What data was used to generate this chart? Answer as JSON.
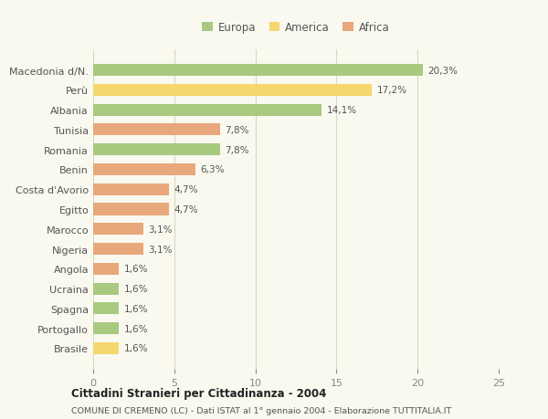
{
  "categories": [
    "Macedonia d/N.",
    "Perù",
    "Albania",
    "Tunisia",
    "Romania",
    "Benin",
    "Costa d'Avorio",
    "Egitto",
    "Marocco",
    "Nigeria",
    "Angola",
    "Ucraina",
    "Spagna",
    "Portogallo",
    "Brasile"
  ],
  "values": [
    20.3,
    17.2,
    14.1,
    7.8,
    7.8,
    6.3,
    4.7,
    4.7,
    3.1,
    3.1,
    1.6,
    1.6,
    1.6,
    1.6,
    1.6
  ],
  "labels": [
    "20,3%",
    "17,2%",
    "14,1%",
    "7,8%",
    "7,8%",
    "6,3%",
    "4,7%",
    "4,7%",
    "3,1%",
    "3,1%",
    "1,6%",
    "1,6%",
    "1,6%",
    "1,6%",
    "1,6%"
  ],
  "colors": [
    "#a8c97f",
    "#f5d76e",
    "#a8c97f",
    "#e8a87c",
    "#a8c97f",
    "#e8a87c",
    "#e8a87c",
    "#e8a87c",
    "#e8a87c",
    "#e8a87c",
    "#e8a87c",
    "#a8c97f",
    "#a8c97f",
    "#a8c97f",
    "#f5d76e"
  ],
  "legend": [
    {
      "label": "Europa",
      "color": "#a8c97f"
    },
    {
      "label": "America",
      "color": "#f5d76e"
    },
    {
      "label": "Africa",
      "color": "#e8a87c"
    }
  ],
  "xlim": [
    0,
    25
  ],
  "xticks": [
    0,
    5,
    10,
    15,
    20,
    25
  ],
  "title": "Cittadini Stranieri per Cittadinanza - 2004",
  "subtitle": "COMUNE DI CREMENO (LC) - Dati ISTAT al 1° gennaio 2004 - Elaborazione TUTTITALIA.IT",
  "background_color": "#f9f9f0",
  "grid_color": "#d8d8c0"
}
